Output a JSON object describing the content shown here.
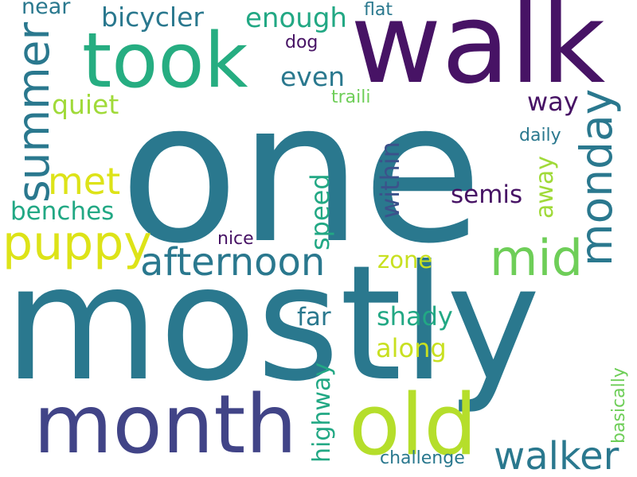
{
  "words": [
    {
      "text": "one",
      "color": "#2a788e",
      "rotated": false
    },
    {
      "text": "mostly",
      "color": "#2a788e",
      "rotated": false
    },
    {
      "text": "walk",
      "color": "#471365",
      "rotated": false
    },
    {
      "text": "took",
      "color": "#26ad81",
      "rotated": false
    },
    {
      "text": "month",
      "color": "#414487",
      "rotated": false
    },
    {
      "text": "old",
      "color": "#b5de2b",
      "rotated": false
    },
    {
      "text": "summer",
      "color": "#2a788e",
      "rotated": true
    },
    {
      "text": "monday",
      "color": "#2a788e",
      "rotated": true
    },
    {
      "text": "puppy",
      "color": "#dde318",
      "rotated": false
    },
    {
      "text": "afternoon",
      "color": "#2a788e",
      "rotated": false
    },
    {
      "text": "mid",
      "color": "#6ece58",
      "rotated": false
    },
    {
      "text": "walker",
      "color": "#2a788e",
      "rotated": false
    },
    {
      "text": "met",
      "color": "#dde318",
      "rotated": false
    },
    {
      "text": "bicycler",
      "color": "#2a788e",
      "rotated": false
    },
    {
      "text": "enough",
      "color": "#22a884",
      "rotated": false
    },
    {
      "text": "even",
      "color": "#2a788e",
      "rotated": false
    },
    {
      "text": "quiet",
      "color": "#a0da39",
      "rotated": false
    },
    {
      "text": "way",
      "color": "#471365",
      "rotated": false
    },
    {
      "text": "benches",
      "color": "#22a884",
      "rotated": false
    },
    {
      "text": "within",
      "color": "#3b528b",
      "rotated": true
    },
    {
      "text": "speed",
      "color": "#22a884",
      "rotated": true
    },
    {
      "text": "semis",
      "color": "#471365",
      "rotated": false
    },
    {
      "text": "away",
      "color": "#a0da39",
      "rotated": true
    },
    {
      "text": "zone",
      "color": "#c8e020",
      "rotated": false
    },
    {
      "text": "far",
      "color": "#2a788e",
      "rotated": false
    },
    {
      "text": "shady",
      "color": "#22a884",
      "rotated": false
    },
    {
      "text": "along",
      "color": "#c8e020",
      "rotated": false
    },
    {
      "text": "highway",
      "color": "#22a884",
      "rotated": true
    },
    {
      "text": "near",
      "color": "#2a788e",
      "rotated": false
    },
    {
      "text": "flat",
      "color": "#2a788e",
      "rotated": false
    },
    {
      "text": "dog",
      "color": "#471365",
      "rotated": false
    },
    {
      "text": "traili",
      "color": "#6ece58",
      "rotated": false
    },
    {
      "text": "daily",
      "color": "#2a788e",
      "rotated": false
    },
    {
      "text": "nice",
      "color": "#471365",
      "rotated": false
    },
    {
      "text": "basically",
      "color": "#6ece58",
      "rotated": true
    },
    {
      "text": "challenge",
      "color": "#2a788e",
      "rotated": false
    }
  ]
}
